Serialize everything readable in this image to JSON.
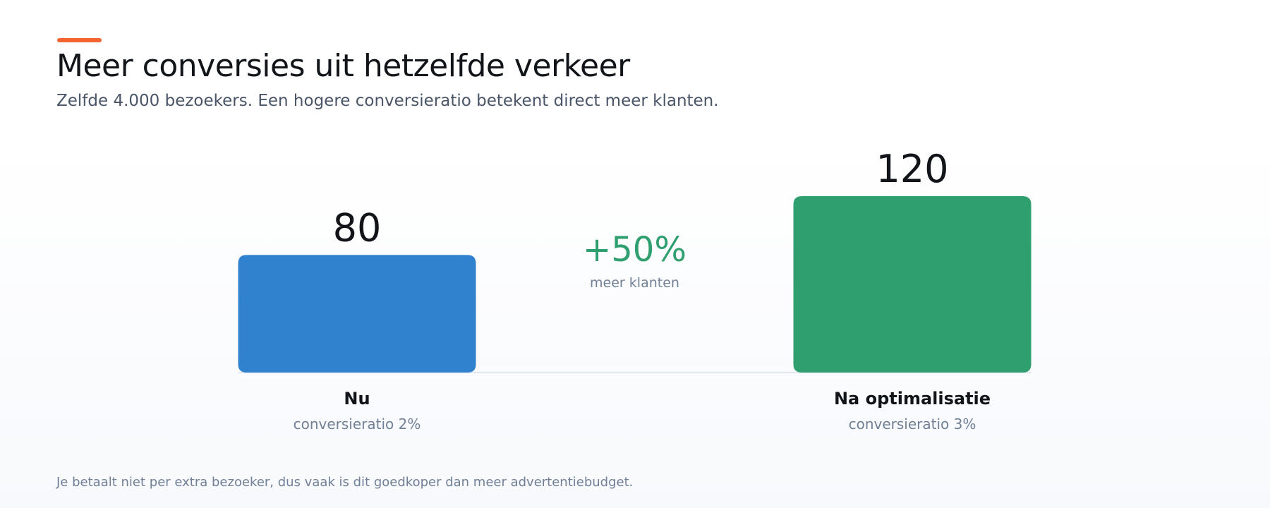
{
  "header": {
    "title": "Meer conversies uit hetzelfde verkeer",
    "subtitle": "Zelfde 4.000 bezoekers. Een hogere conversieratio betekent direct meer klanten."
  },
  "colors": {
    "accent": "#f26430",
    "bar_now": "#3182ce",
    "bar_after": "#2f9f6f",
    "delta": "#2f9f6f",
    "baseline": "#e2e8f0"
  },
  "chart_data": {
    "type": "bar",
    "categories": [
      "Nu",
      "Na optimalisatie"
    ],
    "values": [
      80,
      120
    ],
    "category_sublabels": [
      "conversieratio 2%",
      "conversieratio 3%"
    ],
    "value_labels": [
      "80",
      "120"
    ],
    "ylim": [
      0,
      120
    ],
    "grid": false,
    "annotation": {
      "value": "+50%",
      "label": "meer klanten"
    }
  },
  "footnote": "Je betaalt niet per extra bezoeker, dus vaak is dit goedkoper dan meer advertentiebudget."
}
